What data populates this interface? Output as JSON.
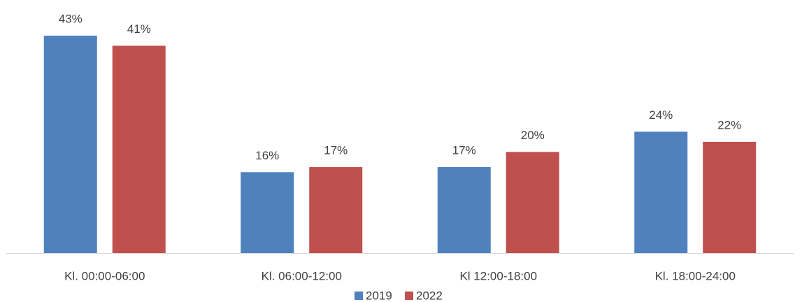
{
  "chart_data": {
    "type": "bar",
    "categories": [
      "Kl. 00:00-06:00",
      "Kl. 06:00-12:00",
      "Kl 12:00-18:00",
      "Kl. 18:00-24:00"
    ],
    "series": [
      {
        "name": "2019",
        "color": "#4f81bd",
        "values": [
          43,
          16,
          17,
          24
        ],
        "value_labels": [
          "43%",
          "16%",
          "17%",
          "24%"
        ]
      },
      {
        "name": "2022",
        "color": "#c0504d",
        "values": [
          41,
          17,
          20,
          22
        ],
        "value_labels": [
          "41%",
          "17%",
          "20%",
          "22%"
        ]
      }
    ],
    "legend": "bottom"
  }
}
